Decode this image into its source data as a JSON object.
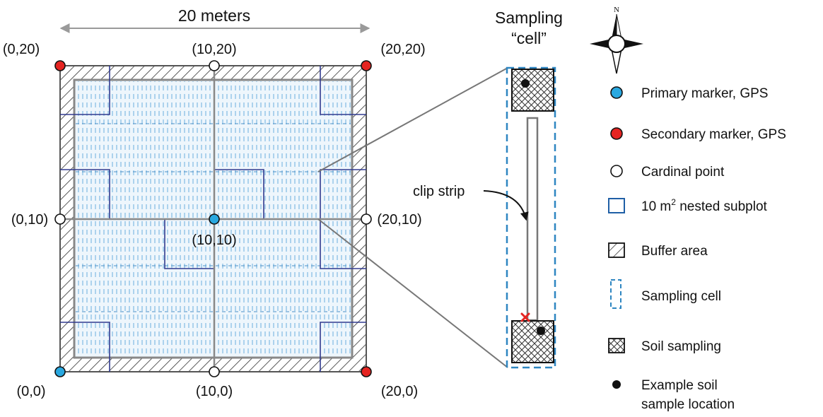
{
  "colors": {
    "primary_marker": "#29a8e0",
    "secondary_marker": "#e52421",
    "cardinal_point": "#ffffff",
    "nested_subplot": "#1f5fa6",
    "nested_subplot_plot": "#303a8f",
    "sampling_cell": "#2e86c1",
    "clip_strip_marker": "#e52421",
    "plot_border": "#888888",
    "dimension_arrow": "#9a9a9a"
  },
  "plot": {
    "dimension_label": "20 meters",
    "corner_labels": {
      "top_left": "(0,20)",
      "top_mid": "(10,20)",
      "top_right": "(20,20)",
      "mid_left": "(0,10)",
      "center": "(10,10)",
      "mid_right": "(20,10)",
      "bottom_left": "(0,0)",
      "bottom_mid": "(10,0)",
      "bottom_right": "(20,0)"
    }
  },
  "detail": {
    "title_line1": "Sampling",
    "title_line2": "“cell”",
    "clip_strip_label": "clip strip"
  },
  "compass": {
    "north_label": "N",
    "icon": "compass-rose-icon"
  },
  "legend": {
    "items": [
      {
        "symbol": "primary-marker-icon",
        "label": "Primary marker, GPS"
      },
      {
        "symbol": "secondary-marker-icon",
        "label": "Secondary marker, GPS"
      },
      {
        "symbol": "cardinal-point-icon",
        "label": "Cardinal point"
      },
      {
        "symbol": "nested-subplot-icon",
        "label": "10 m",
        "sup": "2",
        "label_suffix": " nested subplot"
      },
      {
        "symbol": "buffer-area-icon",
        "label": "Buffer area"
      },
      {
        "symbol": "sampling-cell-icon",
        "label": "Sampling cell"
      },
      {
        "symbol": "soil-sampling-icon",
        "label": "Soil sampling"
      },
      {
        "symbol": "soil-sample-location-icon",
        "label": "Example soil",
        "label_line2": "sample location"
      }
    ]
  }
}
